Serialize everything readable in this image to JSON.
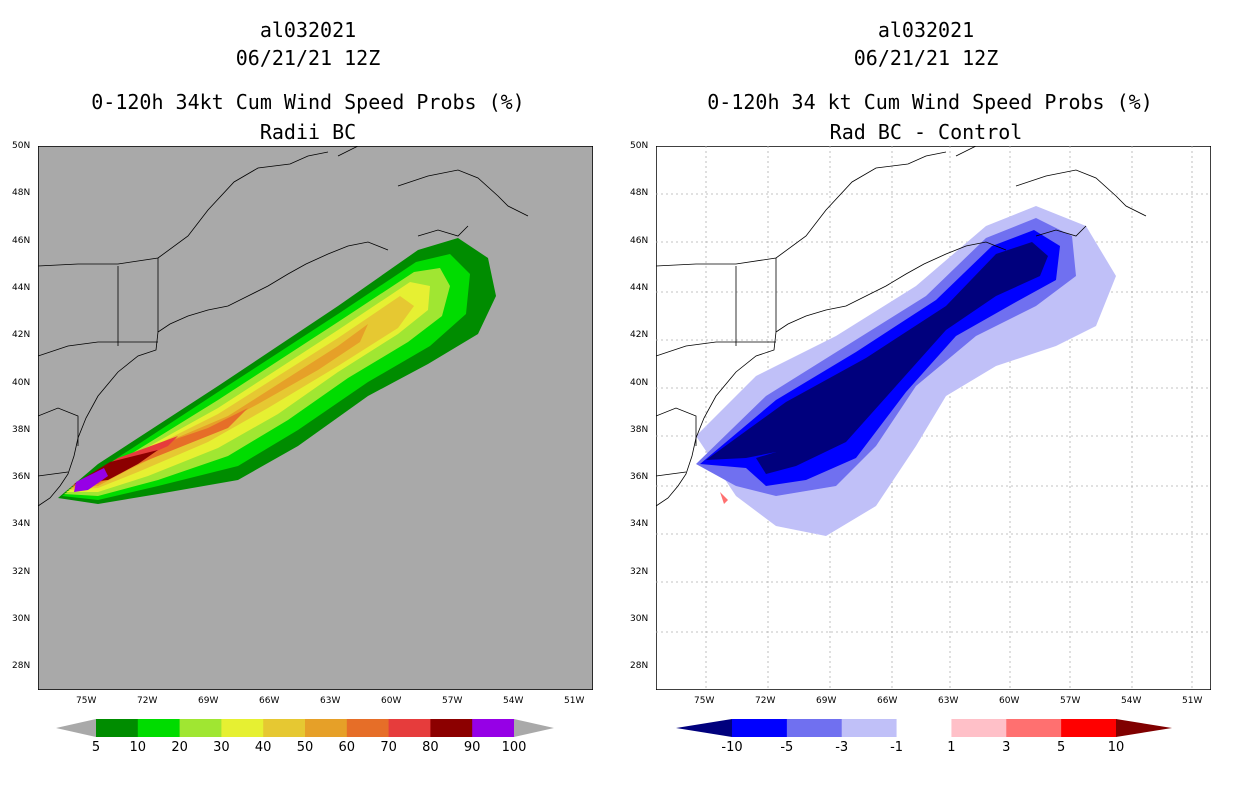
{
  "left_panel": {
    "title_line1": "al032021",
    "title_line2": "06/21/21 12Z",
    "title_line3": "0-120h 34kt Cum Wind Speed Probs (%)",
    "title_line4": "Radii BC",
    "colorbar_labels": [
      "5",
      "10",
      "20",
      "30",
      "40",
      "50",
      "60",
      "70",
      "80",
      "90",
      "100"
    ],
    "colorbar_colors": [
      "#008c00",
      "#00dc00",
      "#a0e632",
      "#e6f032",
      "#e6c832",
      "#e6a028",
      "#e66e28",
      "#e63c3c",
      "#8c0000",
      "#9600e6"
    ],
    "background_color": "#a9a9a9"
  },
  "right_panel": {
    "title_line1": "al032021",
    "title_line2": "06/21/21 12Z",
    "title_line3": "0-120h 34 kt Cum Wind Speed Probs (%)",
    "title_line4": "Rad BC - Control",
    "colorbar_labels": [
      "-10",
      "-5",
      "-3",
      "-1",
      "1",
      "3",
      "5",
      "10"
    ],
    "colorbar_colors": [
      "#00007d",
      "#0000ff",
      "#7070f0",
      "#c0c0f8",
      "#ffffff",
      "#ffc0c8",
      "#ff7070",
      "#ff0000",
      "#800000"
    ],
    "background_color": "#ffffff"
  },
  "axes": {
    "lat_labels": [
      "50N",
      "48N",
      "46N",
      "44N",
      "42N",
      "40N",
      "38N",
      "36N",
      "34N",
      "32N",
      "30N",
      "28N"
    ],
    "lon_labels": [
      "75W",
      "72W",
      "69W",
      "66W",
      "63W",
      "60W",
      "57W",
      "54W",
      "51W"
    ]
  },
  "map_data": {
    "region": "US East Coast / NW Atlantic",
    "lat_range": [
      27.5,
      50
    ],
    "lon_range": [
      -78,
      -50
    ],
    "storm": "al032021"
  }
}
